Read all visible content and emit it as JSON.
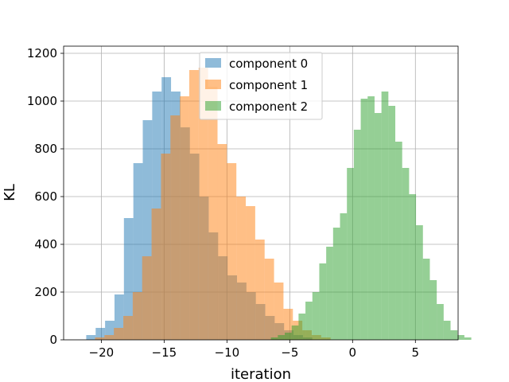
{
  "chart_data": {
    "type": "bar",
    "subtype": "histogram",
    "xlabel": "iteration",
    "ylabel": "KL",
    "xlim": [
      -23.0,
      8.4
    ],
    "ylim": [
      0,
      1230
    ],
    "xticks": [
      -20,
      -15,
      -10,
      -5,
      0,
      5
    ],
    "xtick_labels": [
      "−20",
      "−15",
      "−10",
      "−5",
      "0",
      "5"
    ],
    "yticks": [
      0,
      200,
      400,
      600,
      800,
      1000,
      1200
    ],
    "ytick_labels": [
      "0",
      "200",
      "400",
      "600",
      "800",
      "1000",
      "1200"
    ],
    "grid": true,
    "legend_position": "top-center",
    "series": [
      {
        "name": "component 0",
        "color": "#1f77b4",
        "opacity": 0.5,
        "bin_start": -21.2,
        "bin_width": 0.75,
        "counts": [
          20,
          50,
          80,
          190,
          510,
          740,
          920,
          1040,
          1100,
          1040,
          890,
          780,
          600,
          450,
          350,
          270,
          240,
          200,
          150,
          100,
          70,
          40,
          20,
          10
        ]
      },
      {
        "name": "component 1",
        "color": "#ff7f0e",
        "opacity": 0.5,
        "bin_start": -20.5,
        "bin_width": 0.75,
        "counts": [
          10,
          20,
          50,
          100,
          200,
          350,
          550,
          780,
          940,
          1020,
          1130,
          1140,
          1060,
          820,
          740,
          600,
          560,
          420,
          340,
          240,
          130,
          80,
          40,
          20,
          10
        ]
      },
      {
        "name": "component 2",
        "color": "#2ca02c",
        "opacity": 0.5,
        "bin_start": -6.5,
        "bin_width": 0.55,
        "counts": [
          10,
          20,
          30,
          60,
          110,
          160,
          200,
          320,
          390,
          470,
          530,
          720,
          880,
          1010,
          1020,
          950,
          1040,
          980,
          830,
          720,
          610,
          480,
          340,
          250,
          150,
          80,
          40,
          20,
          10
        ]
      }
    ]
  }
}
